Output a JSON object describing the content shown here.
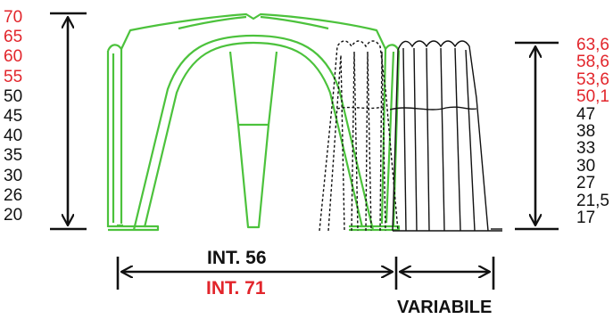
{
  "colors": {
    "accent": "#e2252b",
    "green": "#4cc23c",
    "ink": "#111111"
  },
  "left_scale": [
    {
      "text": "70",
      "color": "red"
    },
    {
      "text": "65",
      "color": "red"
    },
    {
      "text": "60",
      "color": "red"
    },
    {
      "text": "55",
      "color": "red"
    },
    {
      "text": "50",
      "color": "black"
    },
    {
      "text": "45",
      "color": "black"
    },
    {
      "text": "40",
      "color": "black"
    },
    {
      "text": "35",
      "color": "black"
    },
    {
      "text": "30",
      "color": "black"
    },
    {
      "text": "26",
      "color": "black"
    },
    {
      "text": "20",
      "color": "black"
    }
  ],
  "right_scale": [
    {
      "text": "63,6",
      "color": "red"
    },
    {
      "text": "58,6",
      "color": "red"
    },
    {
      "text": "53,6",
      "color": "red"
    },
    {
      "text": "50,1",
      "color": "red"
    },
    {
      "text": "47",
      "color": "black"
    },
    {
      "text": "38",
      "color": "black"
    },
    {
      "text": "33",
      "color": "black"
    },
    {
      "text": "30",
      "color": "black"
    },
    {
      "text": "27",
      "color": "black"
    },
    {
      "text": "21,5",
      "color": "black"
    },
    {
      "text": "17",
      "color": "black"
    }
  ],
  "dimensions": {
    "int_56": "INT. 56",
    "int_71": "INT. 71",
    "variable": "VARIABILE"
  }
}
